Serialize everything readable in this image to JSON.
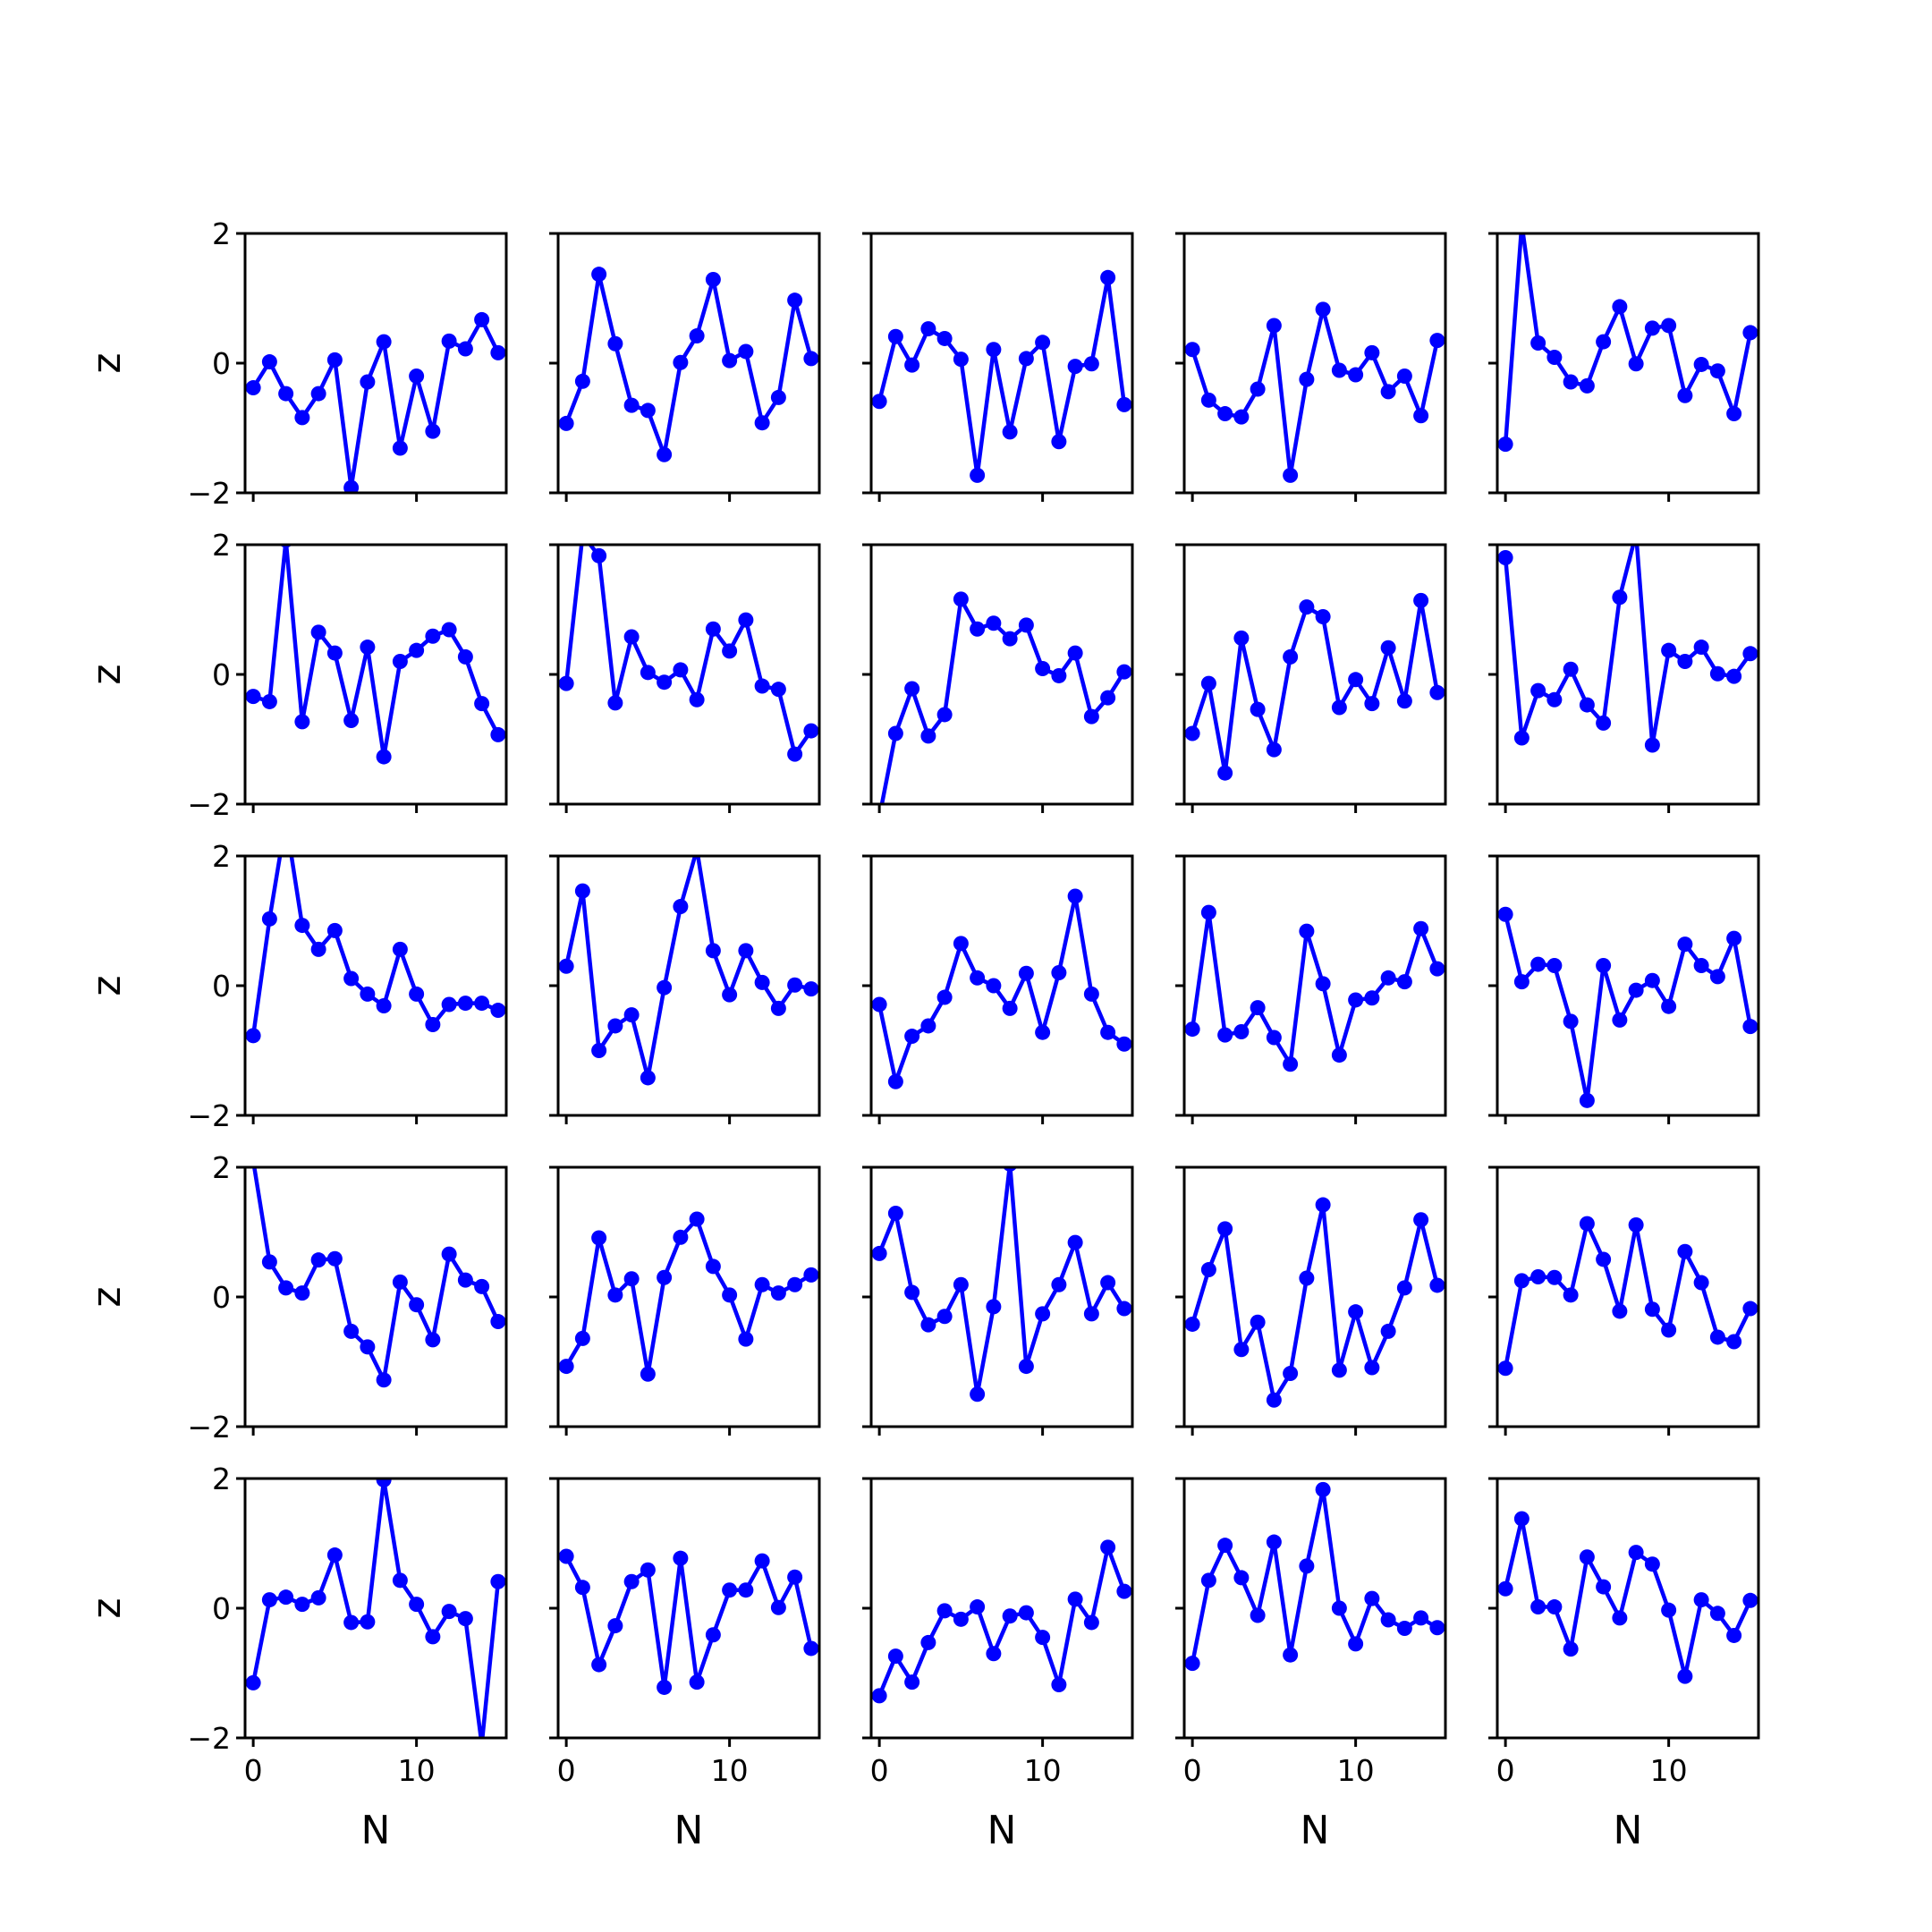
{
  "chart_data": {
    "type": "line",
    "layout": {
      "rows": 5,
      "cols": 5
    },
    "xlabel": "N",
    "ylabel": "z",
    "xlim": [
      -0.5,
      15.5
    ],
    "ylim": [
      -2,
      2
    ],
    "xticks": [
      0,
      10
    ],
    "yticks": [
      -2,
      0,
      2
    ],
    "x": [
      0,
      1,
      2,
      3,
      4,
      5,
      6,
      7,
      8,
      9,
      10,
      11,
      12,
      13,
      14,
      15
    ],
    "line_color": "#0000ff",
    "marker": "circle",
    "grid": false,
    "panels": [
      {
        "values": [
          -0.38,
          0.02,
          -0.47,
          -0.84,
          -0.47,
          0.05,
          -1.92,
          -0.29,
          0.33,
          -1.31,
          -0.2,
          -1.05,
          0.34,
          0.22,
          0.67,
          0.16
        ]
      },
      {
        "values": [
          -0.93,
          -0.28,
          1.37,
          0.3,
          -0.65,
          -0.73,
          -1.41,
          0.01,
          0.42,
          1.29,
          0.04,
          0.18,
          -0.92,
          -0.53,
          0.97,
          0.07
        ]
      },
      {
        "values": [
          -0.59,
          0.41,
          -0.03,
          0.53,
          0.38,
          0.06,
          -1.73,
          0.21,
          -1.06,
          0.07,
          0.32,
          -1.21,
          -0.05,
          -0.01,
          1.32,
          -0.64
        ]
      },
      {
        "values": [
          0.21,
          -0.57,
          -0.78,
          -0.83,
          -0.4,
          0.58,
          -1.73,
          -0.25,
          0.83,
          -0.11,
          -0.18,
          0.16,
          -0.44,
          -0.2,
          -0.81,
          0.35
        ]
      },
      {
        "values": [
          -1.25,
          2.14,
          0.31,
          0.09,
          -0.29,
          -0.35,
          0.33,
          0.87,
          -0.01,
          0.54,
          0.58,
          -0.5,
          -0.02,
          -0.12,
          -0.78,
          0.47
        ]
      },
      {
        "values": [
          -0.34,
          -0.42,
          2.07,
          -0.73,
          0.65,
          0.33,
          -0.71,
          0.42,
          -1.27,
          0.2,
          0.37,
          0.59,
          0.69,
          0.27,
          -0.45,
          -0.93
        ]
      },
      {
        "values": [
          -0.14,
          2.15,
          1.83,
          -0.44,
          0.58,
          0.03,
          -0.12,
          0.07,
          -0.39,
          0.7,
          0.36,
          0.84,
          -0.18,
          -0.23,
          -1.23,
          -0.87
        ]
      },
      {
        "values": [
          -2.2,
          -0.91,
          -0.22,
          -0.95,
          -0.62,
          1.16,
          0.7,
          0.79,
          0.55,
          0.76,
          0.09,
          -0.02,
          0.33,
          -0.65,
          -0.36,
          0.04
        ]
      },
      {
        "values": [
          -0.91,
          -0.14,
          -1.52,
          0.56,
          -0.54,
          -1.16,
          0.27,
          1.04,
          0.89,
          -0.51,
          -0.08,
          -0.45,
          0.41,
          -0.41,
          1.14,
          -0.28
        ]
      },
      {
        "values": [
          1.8,
          -0.98,
          -0.25,
          -0.39,
          0.08,
          -0.47,
          -0.75,
          1.19,
          2.17,
          -1.09,
          0.37,
          0.2,
          0.42,
          0.01,
          -0.03,
          0.32
        ]
      }
    ]
  }
}
